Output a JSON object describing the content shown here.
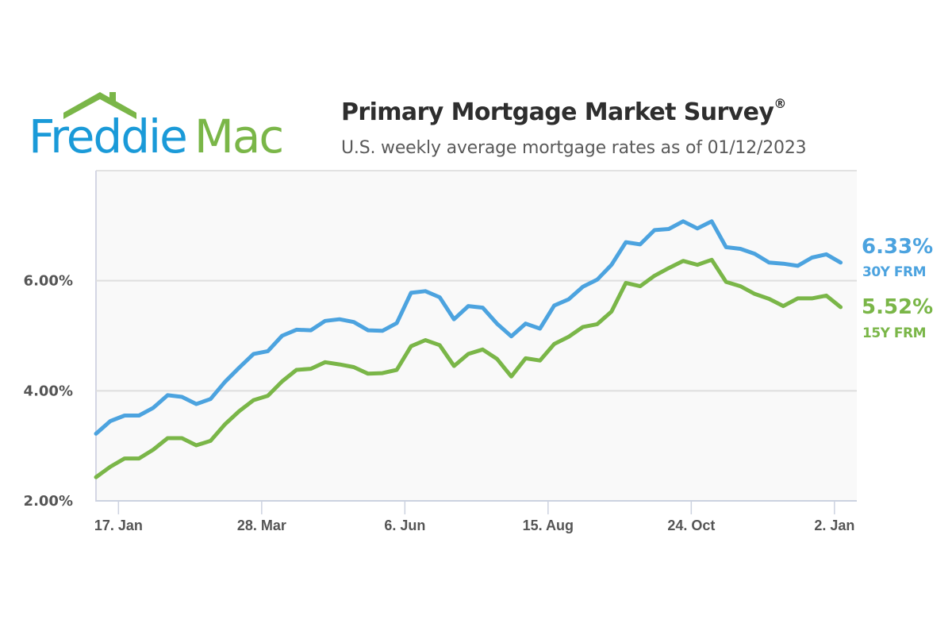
{
  "logo": {
    "word1": "Freddie",
    "word2": "Mac",
    "blue": "#1a9ad8",
    "green": "#7ab648"
  },
  "header": {
    "title": "Primary Mortgage Market Survey",
    "title_mark": "®",
    "subtitle": "U.S. weekly average mortgage rates as of 01/12/2023"
  },
  "legend": {
    "series30": {
      "value": "6.33%",
      "label": "30Y FRM",
      "color": "#4ca3df"
    },
    "series15": {
      "value": "5.52%",
      "label": "15Y FRM",
      "color": "#7ab648"
    }
  },
  "chart_data": {
    "type": "line",
    "title": "Primary Mortgage Market Survey",
    "subtitle": "U.S. weekly average mortgage rates as of 01/12/2023",
    "xlabel": "",
    "ylabel": "",
    "ylim": [
      2,
      8
    ],
    "grid": true,
    "yticks": [
      {
        "value": 2,
        "label": "2.00%"
      },
      {
        "value": 4,
        "label": "4.00%"
      },
      {
        "value": 6,
        "label": "6.00%"
      }
    ],
    "xticks": [
      {
        "index": 1.57,
        "label": "17. Jan"
      },
      {
        "index": 11.57,
        "label": "28. Mar"
      },
      {
        "index": 21.57,
        "label": "6. Jun"
      },
      {
        "index": 31.57,
        "label": "15. Aug"
      },
      {
        "index": 41.57,
        "label": "24. Oct"
      },
      {
        "index": 51.57,
        "label": "2. Jan"
      }
    ],
    "legend_position": "right-end-labels",
    "x_start": "2022-01-06",
    "x_end": "2023-01-12",
    "x_interval": "weekly",
    "series": [
      {
        "name": "30Y FRM",
        "color": "#4ca3df",
        "last_value": 6.33,
        "values": [
          3.22,
          3.45,
          3.55,
          3.55,
          3.69,
          3.92,
          3.89,
          3.76,
          3.85,
          4.16,
          4.42,
          4.67,
          4.72,
          5.0,
          5.11,
          5.1,
          5.27,
          5.3,
          5.25,
          5.1,
          5.09,
          5.23,
          5.78,
          5.81,
          5.7,
          5.3,
          5.54,
          5.51,
          5.22,
          4.99,
          5.22,
          5.13,
          5.55,
          5.66,
          5.89,
          6.02,
          6.29,
          6.7,
          6.66,
          6.92,
          6.94,
          7.08,
          6.95,
          7.08,
          6.61,
          6.58,
          6.49,
          6.33,
          6.31,
          6.27,
          6.42,
          6.48,
          6.33
        ]
      },
      {
        "name": "15Y FRM",
        "color": "#7ab648",
        "last_value": 5.52,
        "values": [
          2.43,
          2.62,
          2.77,
          2.77,
          2.93,
          3.14,
          3.14,
          3.01,
          3.09,
          3.39,
          3.63,
          3.83,
          3.91,
          4.17,
          4.38,
          4.4,
          4.52,
          4.48,
          4.43,
          4.31,
          4.32,
          4.38,
          4.81,
          4.92,
          4.83,
          4.45,
          4.67,
          4.75,
          4.58,
          4.26,
          4.59,
          4.55,
          4.85,
          4.98,
          5.16,
          5.21,
          5.44,
          5.96,
          5.9,
          6.09,
          6.23,
          6.36,
          6.29,
          6.38,
          5.98,
          5.9,
          5.76,
          5.67,
          5.54,
          5.68,
          5.68,
          5.73,
          5.52
        ]
      }
    ]
  }
}
